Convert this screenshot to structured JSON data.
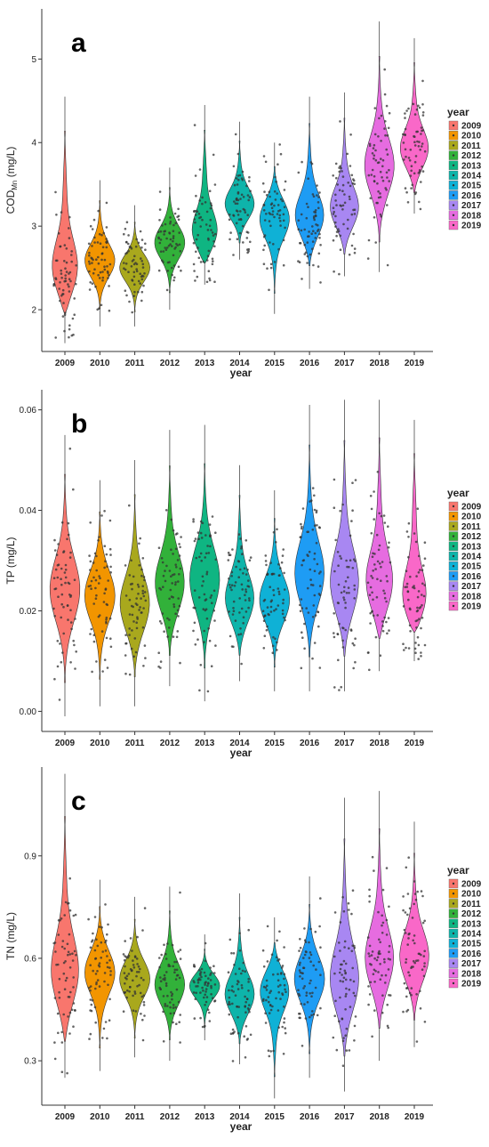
{
  "chart_data": [
    {
      "type": "violin",
      "panel_label": "a",
      "xlabel": "year",
      "ylabel": "COD",
      "ylabel_sub": "Mn",
      "ylabel_unit": " (mg/L)",
      "ylim": [
        1.5,
        5.6
      ],
      "yticks": [
        2,
        3,
        4,
        5
      ],
      "ytick_labels": [
        "2",
        "3",
        "4",
        "5"
      ],
      "categories": [
        "2009",
        "2010",
        "2011",
        "2012",
        "2013",
        "2014",
        "2015",
        "2016",
        "2017",
        "2018",
        "2019"
      ],
      "medians": [
        2.45,
        2.58,
        2.5,
        2.8,
        2.9,
        3.25,
        3.1,
        3.1,
        3.2,
        3.7,
        3.9
      ],
      "whisker_min": [
        1.6,
        1.8,
        1.8,
        2.0,
        2.3,
        2.6,
        1.95,
        2.25,
        2.4,
        2.45,
        3.15
      ],
      "whisker_max": [
        4.55,
        3.55,
        3.25,
        3.7,
        4.45,
        4.25,
        4.0,
        4.55,
        4.6,
        5.45,
        5.25
      ],
      "legend_title": "year",
      "legend_placement": "right"
    },
    {
      "type": "violin",
      "panel_label": "b",
      "xlabel": "year",
      "ylabel": "TP",
      "ylabel_sub": "",
      "ylabel_unit": " (mg/L)",
      "ylim": [
        -0.004,
        0.064
      ],
      "yticks": [
        0,
        0.02,
        0.04,
        0.06
      ],
      "ytick_labels": [
        "0.00",
        "0.02",
        "0.04",
        "0.06"
      ],
      "categories": [
        "2009",
        "2010",
        "2011",
        "2012",
        "2013",
        "2014",
        "2015",
        "2016",
        "2017",
        "2018",
        "2019"
      ],
      "medians": [
        0.024,
        0.023,
        0.021,
        0.025,
        0.026,
        0.022,
        0.022,
        0.027,
        0.025,
        0.025,
        0.022
      ],
      "whisker_min": [
        -0.001,
        0.001,
        0.001,
        0.005,
        0.002,
        0.006,
        0.004,
        0.004,
        0.004,
        0.008,
        0.01
      ],
      "whisker_max": [
        0.055,
        0.046,
        0.05,
        0.056,
        0.057,
        0.049,
        0.044,
        0.061,
        0.062,
        0.062,
        0.058
      ],
      "legend_title": "year",
      "legend_placement": "right"
    },
    {
      "type": "violin",
      "panel_label": "c",
      "xlabel": "year",
      "ylabel": "TN",
      "ylabel_sub": "",
      "ylabel_unit": " (mg/L)",
      "ylim": [
        0.17,
        1.16
      ],
      "yticks": [
        0.3,
        0.6,
        0.9
      ],
      "ytick_labels": [
        "0.3",
        "0.6",
        "0.9"
      ],
      "categories": [
        "2009",
        "2010",
        "2011",
        "2012",
        "2013",
        "2014",
        "2015",
        "2016",
        "2017",
        "2018",
        "2019"
      ],
      "medians": [
        0.55,
        0.56,
        0.54,
        0.52,
        0.52,
        0.49,
        0.51,
        0.54,
        0.53,
        0.59,
        0.6
      ],
      "whisker_min": [
        0.25,
        0.27,
        0.31,
        0.3,
        0.36,
        0.29,
        0.19,
        0.25,
        0.21,
        0.3,
        0.34
      ],
      "whisker_max": [
        1.14,
        0.83,
        0.78,
        0.81,
        0.67,
        0.79,
        0.72,
        0.84,
        1.07,
        1.09,
        1.0
      ],
      "legend_title": "year",
      "legend_placement": "right"
    }
  ],
  "legend": {
    "items": [
      "2009",
      "2010",
      "2011",
      "2012",
      "2013",
      "2014",
      "2015",
      "2016",
      "2017",
      "2018",
      "2019"
    ],
    "colors": [
      "#f8766d",
      "#f29500",
      "#a9a81d",
      "#32b13a",
      "#0fb582",
      "#0eb4aa",
      "#0fb1d6",
      "#1e9cf4",
      "#a887f2",
      "#e66ce0",
      "#f968c8"
    ]
  }
}
